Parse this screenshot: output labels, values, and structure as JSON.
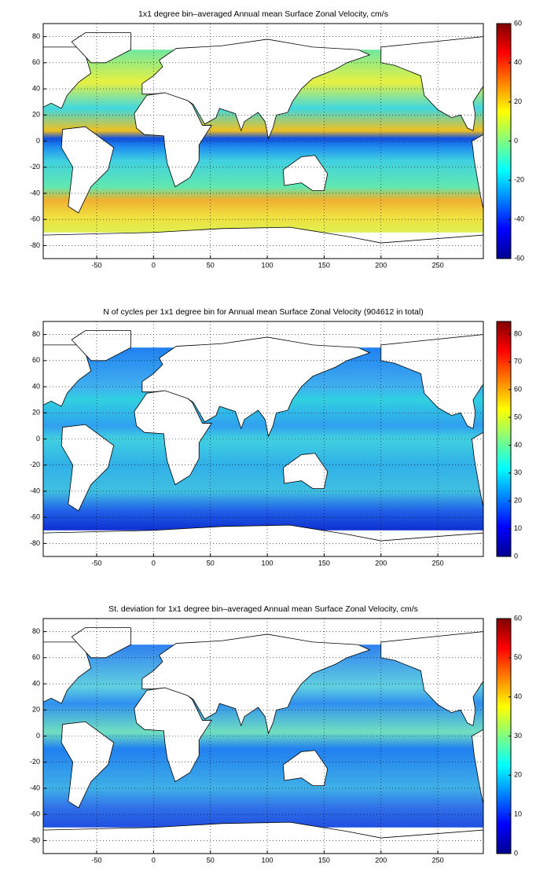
{
  "panels": [
    {
      "title": "1x1 degree bin–averaged Annual mean Surface Zonal Velocity, cm/s",
      "xlim": [
        -97,
        290
      ],
      "ylim": [
        -90,
        90
      ],
      "xticks": [
        -50,
        0,
        50,
        100,
        150,
        200,
        250
      ],
      "yticks": [
        -80,
        -60,
        -40,
        -20,
        0,
        20,
        40,
        60,
        80
      ],
      "grid": true,
      "colorbar": {
        "colormap": "jet",
        "lim": [
          -60,
          60
        ],
        "ticks": [
          -60,
          -40,
          -20,
          0,
          20,
          40,
          60
        ]
      }
    },
    {
      "title": "N of cycles per 1x1 degree bin for Annual mean Surface Zonal Velocity (904612 in total)",
      "xlim": [
        -97,
        290
      ],
      "ylim": [
        -90,
        90
      ],
      "xticks": [
        -50,
        0,
        50,
        100,
        150,
        200,
        250
      ],
      "yticks": [
        -80,
        -60,
        -40,
        -20,
        0,
        20,
        40,
        60,
        80
      ],
      "grid": true,
      "colorbar": {
        "colormap": "jet",
        "lim": [
          0,
          84.5
        ],
        "ticks": [
          0,
          10,
          20,
          30,
          40,
          50,
          60,
          70,
          80
        ]
      }
    },
    {
      "title": "St. deviation for 1x1 degree bin–averaged Annual mean Surface Zonal Velocity, cm/s",
      "xlim": [
        -97,
        290
      ],
      "ylim": [
        -90,
        90
      ],
      "xticks": [
        -50,
        0,
        50,
        100,
        150,
        200,
        250
      ],
      "yticks": [
        -80,
        -60,
        -40,
        -20,
        0,
        20,
        40,
        60,
        80
      ],
      "grid": true,
      "colorbar": {
        "colormap": "jet",
        "lim": [
          0,
          60
        ],
        "ticks": [
          0,
          10,
          20,
          30,
          40,
          50,
          60
        ]
      }
    }
  ]
}
